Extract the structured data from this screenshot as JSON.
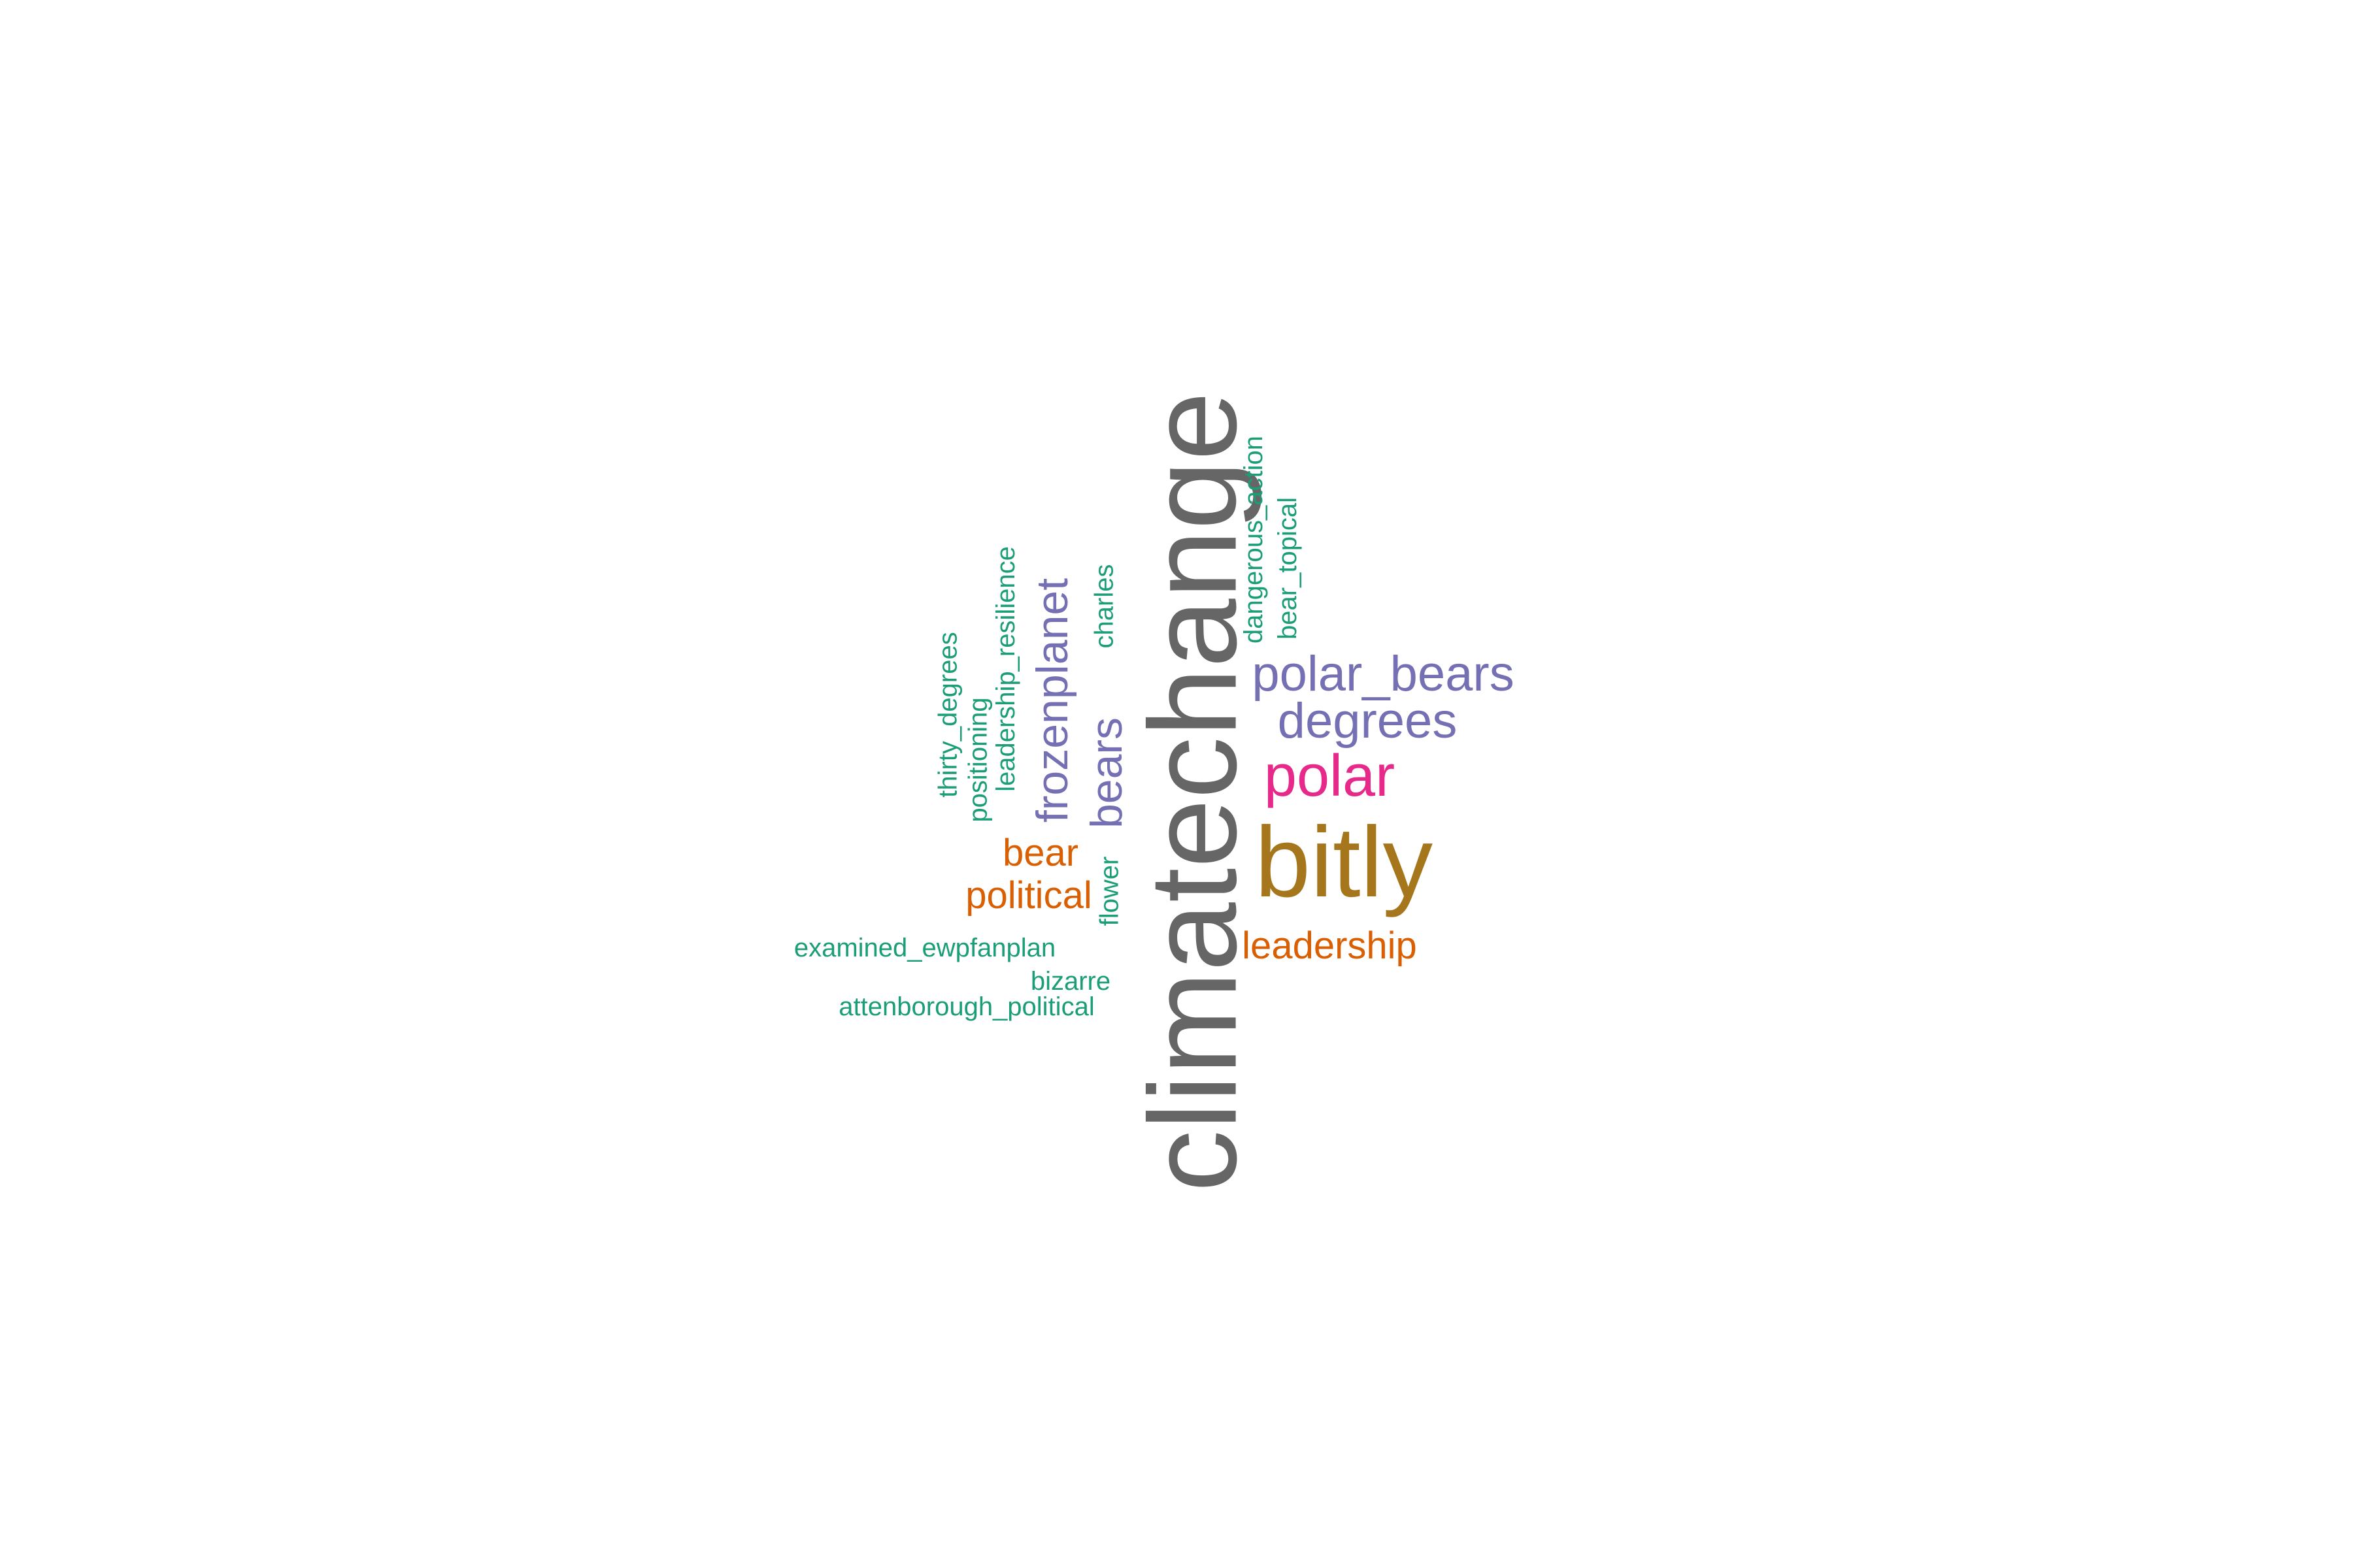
{
  "colors": {
    "gray": "#666666",
    "gold": "#A6761D",
    "magenta": "#E7298A",
    "purple": "#7570B3",
    "orange": "#D95F02",
    "teal": "#1B9E77",
    "background": "#FFFFFF"
  },
  "words": [
    {
      "id": "climatechange",
      "text": "climatechange",
      "color": "gray",
      "rotated": true
    },
    {
      "id": "bitly",
      "text": "bitly",
      "color": "gold",
      "rotated": false
    },
    {
      "id": "polar",
      "text": "polar",
      "color": "magenta",
      "rotated": false
    },
    {
      "id": "polar-bears",
      "text": "polar_bears",
      "color": "purple",
      "rotated": false
    },
    {
      "id": "degrees",
      "text": "degrees",
      "color": "purple",
      "rotated": false
    },
    {
      "id": "frozenplanet",
      "text": "frozenplanet",
      "color": "purple",
      "rotated": true
    },
    {
      "id": "bears",
      "text": "bears",
      "color": "purple",
      "rotated": true
    },
    {
      "id": "leadership",
      "text": "leadership",
      "color": "orange",
      "rotated": false
    },
    {
      "id": "political",
      "text": "political",
      "color": "orange",
      "rotated": false
    },
    {
      "id": "bear",
      "text": "bear",
      "color": "orange",
      "rotated": false
    },
    {
      "id": "dangerous-action",
      "text": "dangerous_action",
      "color": "teal",
      "rotated": true
    },
    {
      "id": "bear-topical",
      "text": "bear_topical",
      "color": "teal",
      "rotated": true
    },
    {
      "id": "charles",
      "text": "charles",
      "color": "teal",
      "rotated": true
    },
    {
      "id": "leadership-resilience",
      "text": "leadership_resilience",
      "color": "teal",
      "rotated": true
    },
    {
      "id": "positioning",
      "text": "positioning",
      "color": "teal",
      "rotated": true
    },
    {
      "id": "thirty-degrees",
      "text": "thirty_degrees",
      "color": "teal",
      "rotated": true
    },
    {
      "id": "flower",
      "text": "flower",
      "color": "teal",
      "rotated": true
    },
    {
      "id": "examined-ewpfanplan",
      "text": "examined_ewpfanplan",
      "color": "teal",
      "rotated": false
    },
    {
      "id": "bizarre",
      "text": "bizarre",
      "color": "teal",
      "rotated": false
    },
    {
      "id": "attenborough-political",
      "text": "attenborough_political",
      "color": "teal",
      "rotated": false
    }
  ]
}
